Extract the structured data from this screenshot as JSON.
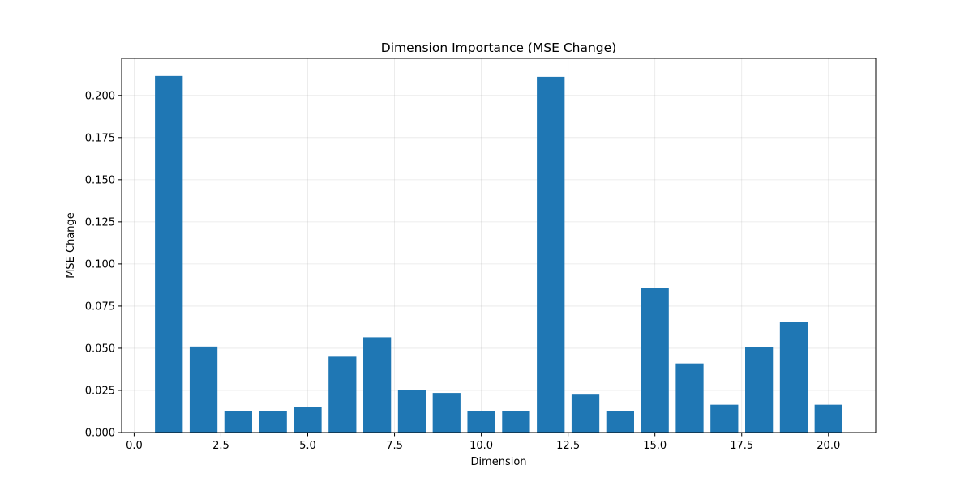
{
  "chart_data": {
    "type": "bar",
    "title": "Dimension Importance (MSE Change)",
    "xlabel": "Dimension",
    "ylabel": "MSE Change",
    "x": [
      1,
      2,
      3,
      4,
      5,
      6,
      7,
      8,
      9,
      10,
      11,
      12,
      13,
      14,
      15,
      16,
      17,
      18,
      19,
      20
    ],
    "values": [
      0.2115,
      0.051,
      0.0125,
      0.0125,
      0.015,
      0.045,
      0.0565,
      0.025,
      0.0235,
      0.0125,
      0.0125,
      0.211,
      0.0225,
      0.0125,
      0.086,
      0.041,
      0.0165,
      0.0505,
      0.0655,
      0.0165
    ],
    "xlim": [
      -0.36,
      21.36
    ],
    "ylim": [
      0,
      0.222
    ],
    "xticks": [
      0.0,
      2.5,
      5.0,
      7.5,
      10.0,
      12.5,
      15.0,
      17.5,
      20.0
    ],
    "xtick_labels": [
      "0.0",
      "2.5",
      "5.0",
      "7.5",
      "10.0",
      "12.5",
      "15.0",
      "17.5",
      "20.0"
    ],
    "yticks": [
      0.0,
      0.025,
      0.05,
      0.075,
      0.1,
      0.125,
      0.15,
      0.175,
      0.2
    ],
    "ytick_labels": [
      "0.000",
      "0.025",
      "0.050",
      "0.075",
      "0.100",
      "0.125",
      "0.150",
      "0.175",
      "0.200"
    ],
    "grid": true,
    "bar_color": "#1f77b4"
  }
}
